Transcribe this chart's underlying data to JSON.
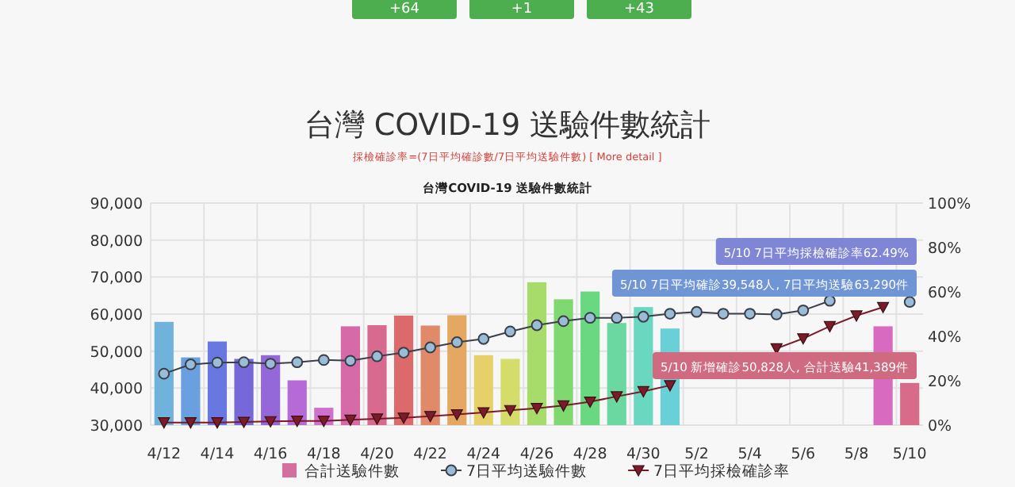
{
  "chart_data": {
    "type": "bar",
    "title": "台灣 COVID-19 送驗件數統計",
    "subtitle": "採檢確診率=(7日平均確診數/7日平均送驗件數) [ More detail ]",
    "categories": [
      "4/12",
      null,
      "4/14",
      null,
      "4/16",
      null,
      "4/18",
      null,
      "4/20",
      null,
      "4/22",
      null,
      "4/24",
      null,
      "4/26",
      null,
      "4/28",
      null,
      "4/30",
      null,
      "5/2",
      null,
      "5/4",
      null,
      "5/6",
      null,
      "5/8",
      null,
      "5/10"
    ],
    "series": [
      {
        "name": "合計送驗件數",
        "color": "#d4709e",
        "colors": [
          "#6fb3dd",
          "#6a9fe0",
          "#6878e0",
          "#7668d8",
          "#9468d8",
          "#b56ad8",
          "#d070cc",
          "#d66aa8",
          "#d86a90",
          "#dc6a6a",
          "#e08a6a",
          "#e4a862",
          "#e6d06a",
          "#d4dc6a",
          "#a8dc6a",
          "#80d870",
          "#6ad880",
          "#6ad8a0",
          "#6ad8c0",
          "#6ad0d8",
          null,
          null,
          null,
          null,
          null,
          null,
          null,
          "#d86ac0",
          "#d86a8a"
        ],
        "values": [
          57900,
          48300,
          52600,
          47900,
          48900,
          42100,
          34700,
          56700,
          57000,
          59600,
          56900,
          59700,
          48900,
          47900,
          68600,
          64000,
          66100,
          57600,
          61900,
          56100,
          null,
          null,
          null,
          null,
          null,
          null,
          null,
          56700,
          41389
        ]
      },
      {
        "name": "7日平均送驗件數",
        "type": "line",
        "color": "#3a3f4a",
        "marker": "circle",
        "values": [
          43900,
          46400,
          46900,
          47000,
          46600,
          47000,
          47600,
          47400,
          48600,
          49600,
          51000,
          52400,
          53300,
          55300,
          57000,
          58100,
          59000,
          59000,
          59300,
          60100,
          60600,
          60100,
          60100,
          59900,
          61000,
          63600,
          null,
          null,
          63290
        ]
      },
      {
        "name": "7日平均採檢確診率",
        "type": "line",
        "axis": "y2",
        "color": "#7a1a2a",
        "marker": "triangle",
        "values": [
          1.2,
          1.2,
          1.2,
          1.4,
          1.7,
          1.9,
          1.9,
          2.4,
          2.9,
          3.3,
          4.0,
          4.8,
          5.7,
          6.7,
          7.6,
          8.8,
          10.5,
          12.9,
          15.2,
          17.9,
          null,
          null,
          null,
          34.5,
          39.0,
          44.5,
          49.3,
          53.1,
          null
        ]
      }
    ],
    "ylim": [
      30000,
      90000
    ],
    "yticks": [
      {
        "value": 30000,
        "label": "30,000"
      },
      {
        "value": 40000,
        "label": "40,000"
      },
      {
        "value": 50000,
        "label": "50,000"
      },
      {
        "value": 60000,
        "label": "60,000"
      },
      {
        "value": 70000,
        "label": "70,000"
      },
      {
        "value": 80000,
        "label": "80,000"
      },
      {
        "value": 90000,
        "label": "90,000"
      }
    ],
    "y2lim": [
      0,
      100
    ],
    "y2ticks": [
      {
        "value": 0,
        "label": "0%"
      },
      {
        "value": 20,
        "label": "20%"
      },
      {
        "value": 40,
        "label": "40%"
      },
      {
        "value": 60,
        "label": "60%"
      },
      {
        "value": 80,
        "label": "80%"
      },
      {
        "value": 100,
        "label": "100%"
      }
    ],
    "grid": true,
    "legend": "bottom",
    "annotations": [
      "+64",
      "+1",
      "+43",
      "台灣COVID-19 送驗件數統計",
      "5/10 7日平均採檢確診率62.49%",
      "5/10 7日平均確診39,548人, 7日平均送驗63,290件",
      "5/10 新增確診50,828人, 合計送驗41,389件"
    ]
  }
}
